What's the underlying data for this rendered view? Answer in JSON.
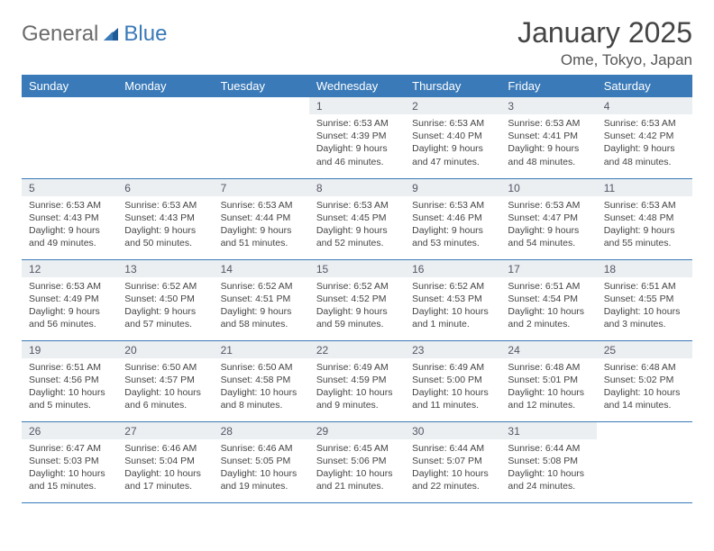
{
  "brand": {
    "word1": "General",
    "word2": "Blue"
  },
  "title": "January 2025",
  "location": "Ome, Tokyo, Japan",
  "colors": {
    "header_bg": "#3a7ab8",
    "header_text": "#ffffff",
    "daynum_bg": "#eceff1",
    "border": "#3a7ab8",
    "logo_gray": "#6b6b6b",
    "logo_blue": "#3a7ab8"
  },
  "weekdays": [
    "Sunday",
    "Monday",
    "Tuesday",
    "Wednesday",
    "Thursday",
    "Friday",
    "Saturday"
  ],
  "weeks": [
    [
      null,
      null,
      null,
      {
        "n": "1",
        "sr": "Sunrise: 6:53 AM",
        "ss": "Sunset: 4:39 PM",
        "d1": "Daylight: 9 hours",
        "d2": "and 46 minutes."
      },
      {
        "n": "2",
        "sr": "Sunrise: 6:53 AM",
        "ss": "Sunset: 4:40 PM",
        "d1": "Daylight: 9 hours",
        "d2": "and 47 minutes."
      },
      {
        "n": "3",
        "sr": "Sunrise: 6:53 AM",
        "ss": "Sunset: 4:41 PM",
        "d1": "Daylight: 9 hours",
        "d2": "and 48 minutes."
      },
      {
        "n": "4",
        "sr": "Sunrise: 6:53 AM",
        "ss": "Sunset: 4:42 PM",
        "d1": "Daylight: 9 hours",
        "d2": "and 48 minutes."
      }
    ],
    [
      {
        "n": "5",
        "sr": "Sunrise: 6:53 AM",
        "ss": "Sunset: 4:43 PM",
        "d1": "Daylight: 9 hours",
        "d2": "and 49 minutes."
      },
      {
        "n": "6",
        "sr": "Sunrise: 6:53 AM",
        "ss": "Sunset: 4:43 PM",
        "d1": "Daylight: 9 hours",
        "d2": "and 50 minutes."
      },
      {
        "n": "7",
        "sr": "Sunrise: 6:53 AM",
        "ss": "Sunset: 4:44 PM",
        "d1": "Daylight: 9 hours",
        "d2": "and 51 minutes."
      },
      {
        "n": "8",
        "sr": "Sunrise: 6:53 AM",
        "ss": "Sunset: 4:45 PM",
        "d1": "Daylight: 9 hours",
        "d2": "and 52 minutes."
      },
      {
        "n": "9",
        "sr": "Sunrise: 6:53 AM",
        "ss": "Sunset: 4:46 PM",
        "d1": "Daylight: 9 hours",
        "d2": "and 53 minutes."
      },
      {
        "n": "10",
        "sr": "Sunrise: 6:53 AM",
        "ss": "Sunset: 4:47 PM",
        "d1": "Daylight: 9 hours",
        "d2": "and 54 minutes."
      },
      {
        "n": "11",
        "sr": "Sunrise: 6:53 AM",
        "ss": "Sunset: 4:48 PM",
        "d1": "Daylight: 9 hours",
        "d2": "and 55 minutes."
      }
    ],
    [
      {
        "n": "12",
        "sr": "Sunrise: 6:53 AM",
        "ss": "Sunset: 4:49 PM",
        "d1": "Daylight: 9 hours",
        "d2": "and 56 minutes."
      },
      {
        "n": "13",
        "sr": "Sunrise: 6:52 AM",
        "ss": "Sunset: 4:50 PM",
        "d1": "Daylight: 9 hours",
        "d2": "and 57 minutes."
      },
      {
        "n": "14",
        "sr": "Sunrise: 6:52 AM",
        "ss": "Sunset: 4:51 PM",
        "d1": "Daylight: 9 hours",
        "d2": "and 58 minutes."
      },
      {
        "n": "15",
        "sr": "Sunrise: 6:52 AM",
        "ss": "Sunset: 4:52 PM",
        "d1": "Daylight: 9 hours",
        "d2": "and 59 minutes."
      },
      {
        "n": "16",
        "sr": "Sunrise: 6:52 AM",
        "ss": "Sunset: 4:53 PM",
        "d1": "Daylight: 10 hours",
        "d2": "and 1 minute."
      },
      {
        "n": "17",
        "sr": "Sunrise: 6:51 AM",
        "ss": "Sunset: 4:54 PM",
        "d1": "Daylight: 10 hours",
        "d2": "and 2 minutes."
      },
      {
        "n": "18",
        "sr": "Sunrise: 6:51 AM",
        "ss": "Sunset: 4:55 PM",
        "d1": "Daylight: 10 hours",
        "d2": "and 3 minutes."
      }
    ],
    [
      {
        "n": "19",
        "sr": "Sunrise: 6:51 AM",
        "ss": "Sunset: 4:56 PM",
        "d1": "Daylight: 10 hours",
        "d2": "and 5 minutes."
      },
      {
        "n": "20",
        "sr": "Sunrise: 6:50 AM",
        "ss": "Sunset: 4:57 PM",
        "d1": "Daylight: 10 hours",
        "d2": "and 6 minutes."
      },
      {
        "n": "21",
        "sr": "Sunrise: 6:50 AM",
        "ss": "Sunset: 4:58 PM",
        "d1": "Daylight: 10 hours",
        "d2": "and 8 minutes."
      },
      {
        "n": "22",
        "sr": "Sunrise: 6:49 AM",
        "ss": "Sunset: 4:59 PM",
        "d1": "Daylight: 10 hours",
        "d2": "and 9 minutes."
      },
      {
        "n": "23",
        "sr": "Sunrise: 6:49 AM",
        "ss": "Sunset: 5:00 PM",
        "d1": "Daylight: 10 hours",
        "d2": "and 11 minutes."
      },
      {
        "n": "24",
        "sr": "Sunrise: 6:48 AM",
        "ss": "Sunset: 5:01 PM",
        "d1": "Daylight: 10 hours",
        "d2": "and 12 minutes."
      },
      {
        "n": "25",
        "sr": "Sunrise: 6:48 AM",
        "ss": "Sunset: 5:02 PM",
        "d1": "Daylight: 10 hours",
        "d2": "and 14 minutes."
      }
    ],
    [
      {
        "n": "26",
        "sr": "Sunrise: 6:47 AM",
        "ss": "Sunset: 5:03 PM",
        "d1": "Daylight: 10 hours",
        "d2": "and 15 minutes."
      },
      {
        "n": "27",
        "sr": "Sunrise: 6:46 AM",
        "ss": "Sunset: 5:04 PM",
        "d1": "Daylight: 10 hours",
        "d2": "and 17 minutes."
      },
      {
        "n": "28",
        "sr": "Sunrise: 6:46 AM",
        "ss": "Sunset: 5:05 PM",
        "d1": "Daylight: 10 hours",
        "d2": "and 19 minutes."
      },
      {
        "n": "29",
        "sr": "Sunrise: 6:45 AM",
        "ss": "Sunset: 5:06 PM",
        "d1": "Daylight: 10 hours",
        "d2": "and 21 minutes."
      },
      {
        "n": "30",
        "sr": "Sunrise: 6:44 AM",
        "ss": "Sunset: 5:07 PM",
        "d1": "Daylight: 10 hours",
        "d2": "and 22 minutes."
      },
      {
        "n": "31",
        "sr": "Sunrise: 6:44 AM",
        "ss": "Sunset: 5:08 PM",
        "d1": "Daylight: 10 hours",
        "d2": "and 24 minutes."
      },
      null
    ]
  ]
}
